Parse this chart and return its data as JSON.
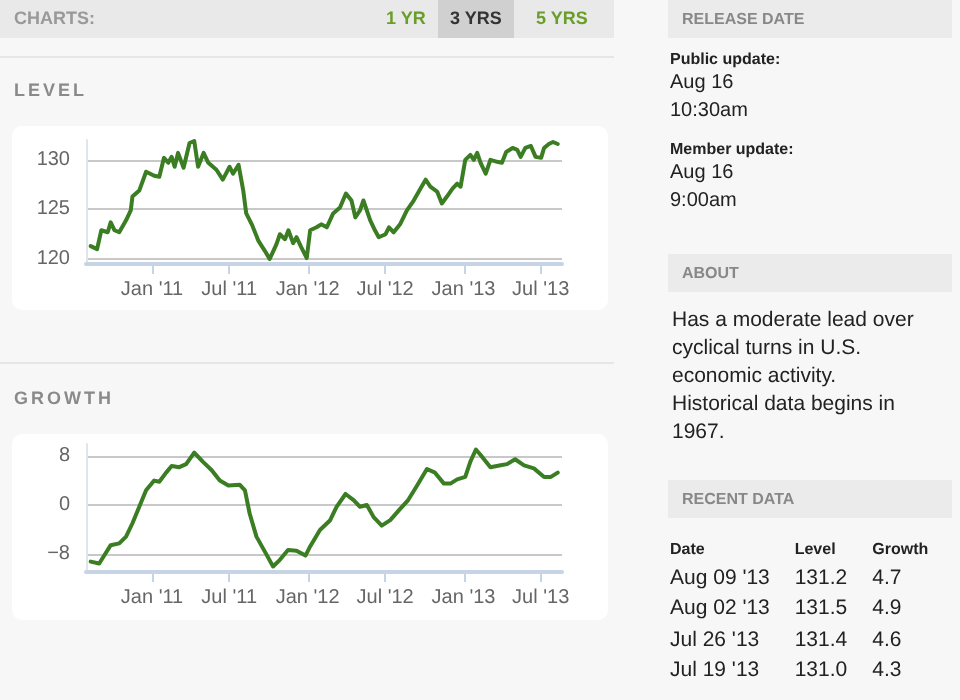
{
  "chart_data": [
    {
      "type": "other",
      "title": "CHARTS:",
      "annotations": [
        "1 YR",
        "3 YRS",
        "5 YRS"
      ]
    },
    {
      "type": "line",
      "title": "LEVEL",
      "xlim": [
        "2010-07-30",
        "2013-08-20"
      ],
      "ylim": [
        119.5,
        132
      ],
      "yticks": [
        120,
        125,
        130
      ],
      "grid": "y",
      "line_style": "solid",
      "marker": "none",
      "xticks": [
        {
          "value": "2011-01-01",
          "label": "Jan '11"
        },
        {
          "value": "2011-07-01",
          "label": "Jul '11"
        },
        {
          "value": "2012-01-01",
          "label": "Jan '12"
        },
        {
          "value": "2012-07-01",
          "label": "Jul '12"
        },
        {
          "value": "2013-01-01",
          "label": "Jan '13"
        },
        {
          "value": "2013-07-01",
          "label": "Jul '13"
        }
      ],
      "x": [
        "2010-08-10",
        "2010-08-25",
        "2010-09-04",
        "2010-09-19",
        "2010-09-26",
        "2010-10-05",
        "2010-10-16",
        "2010-11-01",
        "2010-11-12",
        "2010-11-16",
        "2010-12-02",
        "2010-12-18",
        "2011-01-06",
        "2011-01-18",
        "2011-01-29",
        "2011-02-08",
        "2011-02-16",
        "2011-02-23",
        "2011-03-03",
        "2011-03-16",
        "2011-03-30",
        "2011-04-10",
        "2011-04-19",
        "2011-05-02",
        "2011-05-13",
        "2011-06-01",
        "2011-06-16",
        "2011-07-02",
        "2011-07-10",
        "2011-07-23",
        "2011-08-03",
        "2011-08-10",
        "2011-08-23",
        "2011-09-08",
        "2011-09-23",
        "2011-10-04",
        "2011-10-20",
        "2011-10-28",
        "2011-11-09",
        "2011-11-17",
        "2011-11-28",
        "2011-12-06",
        "2011-12-17",
        "2011-12-30",
        "2012-01-07",
        "2012-01-22",
        "2012-02-02",
        "2012-02-15",
        "2012-03-01",
        "2012-03-17",
        "2012-03-31",
        "2012-04-13",
        "2012-04-22",
        "2012-05-03",
        "2012-05-11",
        "2012-05-27",
        "2012-06-07",
        "2012-06-16",
        "2012-07-02",
        "2012-07-10",
        "2012-07-21",
        "2012-08-05",
        "2012-08-21",
        "2012-09-06",
        "2012-09-22",
        "2012-10-04",
        "2012-10-15",
        "2012-10-31",
        "2012-11-11",
        "2012-11-23",
        "2012-12-06",
        "2012-12-17",
        "2012-12-25",
        "2013-01-05",
        "2013-01-17",
        "2013-01-25",
        "2013-02-02",
        "2013-02-10",
        "2013-02-22",
        "2013-03-05",
        "2013-03-21",
        "2013-04-01",
        "2013-04-11",
        "2013-04-26",
        "2013-05-07",
        "2013-05-15",
        "2013-05-26",
        "2013-06-08",
        "2013-06-19",
        "2013-07-02",
        "2013-07-09",
        "2013-07-20",
        "2013-07-30",
        "2013-08-10"
      ],
      "series": [
        {
          "color": "#3a7d23",
          "values": [
            121.3,
            121.0,
            122.9,
            122.7,
            123.7,
            122.9,
            122.7,
            123.9,
            124.9,
            126.3,
            126.9,
            128.8,
            128.4,
            128.3,
            130.2,
            129.7,
            130.3,
            129.3,
            130.7,
            129.2,
            131.7,
            131.9,
            129.3,
            130.7,
            129.7,
            129.0,
            128.0,
            129.3,
            128.6,
            129.5,
            126.9,
            124.6,
            123.5,
            121.8,
            120.8,
            120.0,
            121.5,
            122.5,
            122.0,
            122.9,
            121.6,
            122.2,
            121.2,
            120.1,
            122.9,
            123.2,
            123.5,
            123.2,
            124.6,
            125.2,
            126.6,
            125.9,
            124.2,
            124.9,
            125.9,
            123.9,
            122.9,
            122.2,
            122.5,
            123.2,
            122.7,
            123.5,
            124.9,
            125.9,
            127.1,
            128.0,
            127.3,
            126.8,
            125.6,
            126.3,
            127.1,
            127.6,
            127.3,
            130.0,
            130.5,
            130.0,
            130.7,
            129.7,
            128.6,
            130.0,
            129.8,
            129.7,
            130.8,
            131.2,
            131.0,
            130.3,
            131.2,
            131.4,
            130.3,
            130.2,
            131.2,
            131.6,
            131.8,
            131.6
          ]
        }
      ]
    },
    {
      "type": "line",
      "title": "GROWTH",
      "xlim": [
        "2010-07-30",
        "2013-08-20"
      ],
      "ylim": [
        -11,
        10
      ],
      "yticks": [
        {
          "value": -8,
          "label": "−8"
        },
        0,
        8
      ],
      "grid": "y",
      "line_style": "solid",
      "marker": "none",
      "xticks": [
        {
          "value": "2011-01-01",
          "label": "Jan '11"
        },
        {
          "value": "2011-07-01",
          "label": "Jul '11"
        },
        {
          "value": "2012-01-01",
          "label": "Jan '12"
        },
        {
          "value": "2012-07-01",
          "label": "Jul '12"
        },
        {
          "value": "2013-01-01",
          "label": "Jan '13"
        },
        {
          "value": "2013-07-01",
          "label": "Jul '13"
        }
      ],
      "x": [
        "2010-08-10",
        "2010-08-30",
        "2010-09-26",
        "2010-10-16",
        "2010-11-01",
        "2010-11-16",
        "2010-12-02",
        "2010-12-18",
        "2011-01-06",
        "2011-01-18",
        "2011-02-03",
        "2011-02-16",
        "2011-03-06",
        "2011-03-22",
        "2011-04-10",
        "2011-04-30",
        "2011-05-21",
        "2011-06-09",
        "2011-06-29",
        "2011-07-26",
        "2011-08-07",
        "2011-08-18",
        "2011-09-03",
        "2011-09-23",
        "2011-10-12",
        "2011-10-28",
        "2011-11-16",
        "2011-12-06",
        "2011-12-27",
        "2012-01-07",
        "2012-01-30",
        "2012-02-23",
        "2012-03-09",
        "2012-03-30",
        "2012-04-18",
        "2012-05-03",
        "2012-05-19",
        "2012-06-04",
        "2012-06-23",
        "2012-07-13",
        "2012-08-02",
        "2012-08-24",
        "2012-09-14",
        "2012-10-07",
        "2012-10-26",
        "2012-11-16",
        "2012-12-01",
        "2012-12-17",
        "2013-01-05",
        "2013-01-17",
        "2013-01-30",
        "2013-02-10",
        "2013-03-05",
        "2013-03-29",
        "2013-04-13",
        "2013-05-02",
        "2013-05-23",
        "2013-06-15",
        "2013-07-09",
        "2013-07-25",
        "2013-08-10"
      ],
      "series": [
        {
          "color": "#3a7d23",
          "values": [
            -9.3,
            -9.6,
            -6.6,
            -6.3,
            -5.2,
            -3.0,
            -0.3,
            2.4,
            4.0,
            3.8,
            5.3,
            6.4,
            6.2,
            6.7,
            8.6,
            7.1,
            5.7,
            4.0,
            3.2,
            3.3,
            2.4,
            -1.4,
            -5.2,
            -7.7,
            -10.1,
            -9.0,
            -7.4,
            -7.5,
            -8.3,
            -6.8,
            -4.1,
            -2.5,
            -0.3,
            1.8,
            0.8,
            -0.3,
            0,
            -2.0,
            -3.4,
            -2.5,
            -0.9,
            0.8,
            3.2,
            5.9,
            5.3,
            3.5,
            3.5,
            4.2,
            4.6,
            7.1,
            9.1,
            8.2,
            6.2,
            6.5,
            6.7,
            7.5,
            6.5,
            6.0,
            4.6,
            4.6,
            5.3
          ]
        }
      ]
    },
    {
      "type": "other",
      "title": "RELEASE DATE",
      "annotations": [
        "Public update:",
        "Aug 16",
        "10:30am",
        "Member update:",
        "Aug 16",
        "9:00am"
      ]
    },
    {
      "type": "other",
      "title": "ABOUT",
      "annotations": [
        "Has a moderate lead over cyclical turns in U.S. economic activity. Historical data begins in 1967."
      ]
    },
    {
      "type": "other",
      "title": "RECENT DATA",
      "annotations": [
        "Date",
        "Level",
        "Growth",
        "Aug 09 '13",
        "131.2",
        "4.7",
        "Aug 02 '13",
        "131.5",
        "4.9",
        "Jul 26 '13",
        "131.4",
        "4.6",
        "Jul 19 '13",
        "131.0",
        "4.3"
      ]
    }
  ]
}
